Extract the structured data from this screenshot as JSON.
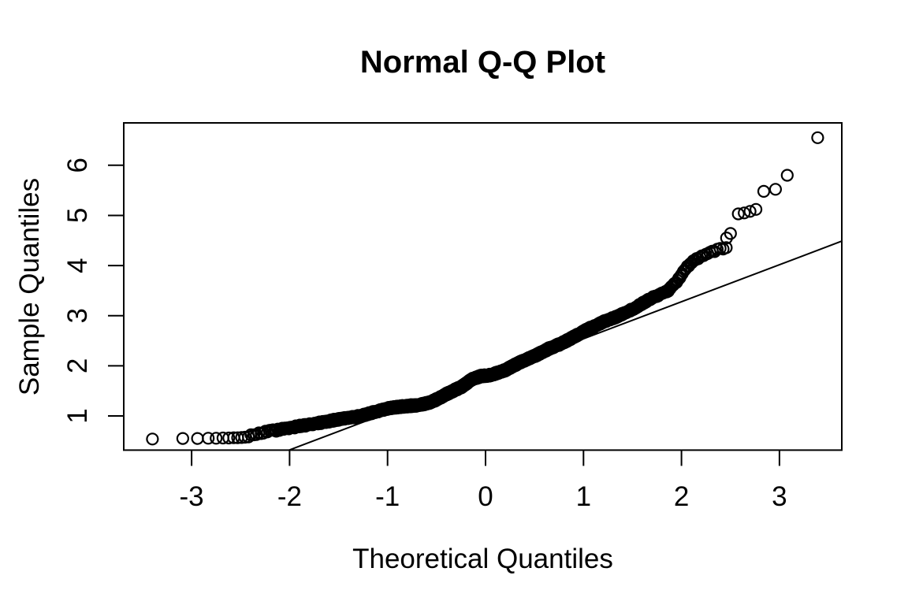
{
  "title": "Normal Q-Q Plot",
  "colors": {
    "foreground": "#000000",
    "background": "#ffffff"
  },
  "chart_data": {
    "type": "scatter",
    "title": "Normal Q-Q Plot",
    "xlabel": "Theoretical Quantiles",
    "ylabel": "Sample Quantiles",
    "xlim": [
      -3.69,
      3.64
    ],
    "ylim": [
      0.32,
      6.85
    ],
    "x_ticks": [
      -3,
      -2,
      -1,
      0,
      1,
      2,
      3
    ],
    "y_ticks": [
      1,
      2,
      3,
      4,
      5,
      6
    ],
    "grid": false,
    "legend_position": "none",
    "marker": "open-circle",
    "n_points": 1500,
    "reference_line": {
      "type": "qqline",
      "intercept": 1.8,
      "slope": 0.739
    },
    "lowest_points": [
      [
        -3.4,
        0.54
      ],
      [
        -3.09,
        0.55
      ],
      [
        -2.94,
        0.55
      ],
      [
        -2.83,
        0.555
      ],
      [
        -2.75,
        0.555
      ],
      [
        -2.68,
        0.56
      ],
      [
        -2.62,
        0.56
      ],
      [
        -2.57,
        0.565
      ],
      [
        -2.53,
        0.565
      ],
      [
        -2.49,
        0.57
      ],
      [
        -2.455,
        0.575
      ],
      [
        -2.42,
        0.58
      ]
    ],
    "highest_points": [
      [
        2.46,
        4.55
      ],
      [
        2.5,
        4.64
      ],
      [
        2.58,
        5.03
      ],
      [
        2.64,
        5.05
      ],
      [
        2.7,
        5.08
      ],
      [
        2.76,
        5.12
      ],
      [
        2.84,
        5.48
      ],
      [
        2.96,
        5.52
      ],
      [
        3.08,
        5.8
      ],
      [
        3.39,
        6.55
      ]
    ],
    "quantile_curve_knots": [
      [
        -2.45,
        0.595
      ],
      [
        -2.3,
        0.63
      ],
      [
        -2.15,
        0.68
      ],
      [
        -2.0,
        0.76
      ],
      [
        -1.9,
        0.83
      ],
      [
        -1.75,
        0.87
      ],
      [
        -1.6,
        0.9
      ],
      [
        -1.45,
        0.94
      ],
      [
        -1.3,
        0.99
      ],
      [
        -1.15,
        1.06
      ],
      [
        -1.0,
        1.12
      ],
      [
        -0.85,
        1.17
      ],
      [
        -0.7,
        1.23
      ],
      [
        -0.55,
        1.32
      ],
      [
        -0.4,
        1.45
      ],
      [
        -0.25,
        1.56
      ],
      [
        -0.13,
        1.72
      ],
      [
        -0.05,
        1.78
      ],
      [
        0.05,
        1.81
      ],
      [
        0.2,
        1.9
      ],
      [
        0.35,
        2.05
      ],
      [
        0.5,
        2.2
      ],
      [
        0.65,
        2.38
      ],
      [
        0.8,
        2.5
      ],
      [
        0.95,
        2.62
      ],
      [
        1.1,
        2.75
      ],
      [
        1.25,
        2.9
      ],
      [
        1.4,
        3.03
      ],
      [
        1.55,
        3.18
      ],
      [
        1.7,
        3.35
      ],
      [
        1.85,
        3.5
      ],
      [
        1.95,
        3.7
      ],
      [
        2.05,
        3.98
      ],
      [
        2.12,
        4.1
      ],
      [
        2.2,
        4.17
      ],
      [
        2.3,
        4.23
      ],
      [
        2.42,
        4.31
      ]
    ],
    "band_noise": {
      "wiggle_amp1": 0.022,
      "wiggle_freq1": 5.3,
      "wiggle_phase1": 1.2,
      "wiggle_amp2": 0.016,
      "wiggle_freq2": 9.7,
      "wiggle_phase2": 4.0,
      "jitter_amp": 0.02
    }
  }
}
